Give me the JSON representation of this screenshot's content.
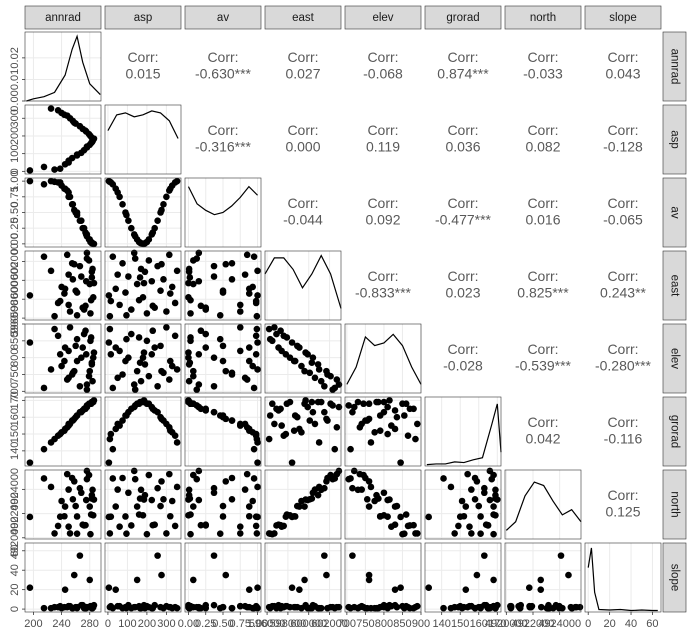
{
  "chart_data": {
    "type": "scatter_matrix",
    "corr_title": "Corr:",
    "point_color": "#000000",
    "grid": true,
    "variables": [
      {
        "name": "annrad",
        "lim": [
          188,
          296
        ],
        "ticks": [
          200,
          240,
          280
        ],
        "values": [
          230,
          215,
          245,
          250,
          255,
          262,
          268,
          272,
          276,
          280,
          282,
          284,
          285,
          283,
          281,
          279,
          275,
          270,
          266,
          260,
          256,
          252,
          248,
          240,
          235,
          225,
          195,
          250,
          262,
          276,
          286,
          274,
          258,
          244,
          283,
          238
        ],
        "density": {
          "x": [
            190,
            200,
            215,
            230,
            245,
            255,
            262,
            270,
            280,
            295
          ],
          "y": [
            0.0,
            0.001,
            0.002,
            0.004,
            0.012,
            0.024,
            0.03,
            0.018,
            0.008,
            0.003
          ],
          "ylim": [
            0,
            0.032
          ],
          "ticks": [
            {
              "value": 0,
              "label": "0.00"
            },
            {
              "value": 0.01,
              "label": "0.01"
            },
            {
              "value": 0.02,
              "label": "0.02"
            }
          ]
        }
      },
      {
        "name": "asp",
        "lim": [
          -15,
          375
        ],
        "ticks": [
          0,
          100,
          200,
          300
        ],
        "values": [
          10,
          25,
          40,
          60,
          75,
          90,
          105,
          120,
          135,
          150,
          160,
          170,
          180,
          190,
          200,
          210,
          225,
          240,
          255,
          270,
          285,
          300,
          315,
          330,
          345,
          355,
          5,
          50,
          95,
          140,
          185,
          230,
          275,
          320,
          165,
          15
        ],
        "density": {
          "x": [
            0,
            45,
            90,
            135,
            180,
            225,
            270,
            315,
            360
          ],
          "y": [
            0.0022,
            0.003,
            0.0031,
            0.0029,
            0.003,
            0.0032,
            0.0031,
            0.0027,
            0.0018
          ],
          "ylim": [
            0,
            0.0035
          ]
        }
      },
      {
        "name": "av",
        "lim": [
          -0.05,
          1.05
        ],
        "ticks": [
          {
            "value": 0,
            "label": "0.00"
          },
          {
            "value": 0.25,
            "label": "0.25"
          },
          {
            "value": 0.5,
            "label": "0.50"
          },
          {
            "value": 0.75,
            "label": "0.75"
          },
          {
            "value": 1,
            "label": "1.00"
          }
        ],
        "values": [
          0.99,
          0.95,
          0.88,
          0.75,
          0.63,
          0.5,
          0.37,
          0.25,
          0.15,
          0.07,
          0.03,
          0.01,
          0.0,
          0.01,
          0.03,
          0.07,
          0.15,
          0.25,
          0.37,
          0.5,
          0.63,
          0.75,
          0.85,
          0.93,
          0.98,
          1.0,
          1.0,
          0.82,
          0.46,
          0.12,
          0.0,
          0.18,
          0.54,
          0.88,
          0.02,
          0.98
        ],
        "density": {
          "x": [
            0,
            0.125,
            0.25,
            0.375,
            0.5,
            0.625,
            0.75,
            0.875,
            1
          ],
          "y": [
            1.4,
            1.0,
            0.85,
            0.75,
            0.8,
            0.95,
            1.15,
            1.4,
            1.2
          ],
          "ylim": [
            0,
            1.6
          ]
        }
      },
      {
        "name": "east",
        "lim": [
          595800,
          603100
        ],
        "ticks": [
          596000,
          598000,
          600000,
          602000
        ],
        "values": [
          596200,
          602500,
          599100,
          597400,
          601800,
          598700,
          600400,
          596900,
          602900,
          599600,
          597900,
          601200,
          598200,
          600900,
          596500,
          602100,
          599900,
          597100,
          601500,
          598900,
          600100,
          596700,
          602700,
          599300,
          597600,
          601000,
          598400,
          600600,
          596300,
          602300,
          599700,
          597300,
          601700,
          598600,
          600300,
          597800
        ],
        "density": {
          "x": [
            595800,
            596700,
            597600,
            598500,
            599400,
            600300,
            601200,
            602100,
            603100
          ],
          "y": [
            0.0002,
            0.00027,
            0.00027,
            0.00022,
            0.00014,
            0.0002,
            0.00028,
            0.0002,
            5e-05
          ],
          "ylim": [
            0,
            0.0003
          ]
        }
      },
      {
        "name": "elev",
        "lim": [
          695,
          900
        ],
        "ticks": [
          700,
          750,
          800,
          850,
          900
        ],
        "values": [
          885,
          710,
          830,
          820,
          750,
          790,
          800,
          870,
          720,
          760,
          860,
          730,
          800,
          780,
          850,
          745,
          810,
          830,
          715,
          835,
          755,
          890,
          735,
          775,
          865,
          765,
          845,
          740,
          855,
          705,
          815,
          880,
          760,
          790,
          785,
          810
        ],
        "density": {
          "x": [
            700,
            725,
            750,
            775,
            800,
            825,
            850,
            875,
            900
          ],
          "y": [
            0.001,
            0.003,
            0.0065,
            0.0055,
            0.0058,
            0.0068,
            0.0055,
            0.003,
            0.001
          ],
          "ylim": [
            0,
            0.008
          ]
        }
      },
      {
        "name": "grorad",
        "lim": [
          131,
          172
        ],
        "ticks": [
          140,
          150,
          160,
          170
        ],
        "values": [
          147,
          141,
          153,
          155,
          158,
          161,
          163,
          165,
          166,
          168,
          168,
          169,
          169,
          169,
          168,
          168,
          166,
          164,
          163,
          160,
          158,
          156,
          154,
          151,
          149,
          145,
          133,
          156,
          161,
          167,
          170,
          165,
          159,
          152,
          169,
          150
        ],
        "density": {
          "x": [
            132,
            137,
            142,
            147,
            152,
            157,
            162,
            167,
            170,
            172
          ],
          "y": [
            0.002,
            0.003,
            0.003,
            0.006,
            0.005,
            0.009,
            0.012,
            0.06,
            0.09,
            0.02
          ],
          "ylim": [
            0,
            0.1
          ]
        }
      },
      {
        "name": "north",
        "lim": [
          4919900,
          4925600
        ],
        "ticks": [
          4920000,
          4922000,
          4924000
        ],
        "values": [
          4920360,
          4924900,
          4922580,
          4920920,
          4924940,
          4921760,
          4923720,
          4921020,
          4925520,
          4922580,
          4921920,
          4923960,
          4921860,
          4923520,
          4920300,
          4925180,
          4923120,
          4921080,
          4924100,
          4922620,
          4923180,
          4920360,
          4925260,
          4923040,
          4920980,
          4924200,
          4921720,
          4923980,
          4920340,
          4924840,
          4923160,
          4921040,
          4924660,
          4921780,
          4923240,
          4921740
        ],
        "density": {
          "x": [
            4920000,
            4920700,
            4921400,
            4922100,
            4922800,
            4923500,
            4924200,
            4924900,
            4925600
          ],
          "y": [
            5e-05,
            0.0001,
            0.00025,
            0.00033,
            0.00031,
            0.00022,
            0.00014,
            0.00017,
            0.0001
          ],
          "ylim": [
            0,
            0.0004
          ]
        }
      },
      {
        "name": "slope",
        "lim": [
          -3,
          68
        ],
        "ticks": [
          0,
          20,
          40,
          60
        ],
        "values": [
          2,
          1,
          20,
          3,
          1,
          2,
          4,
          1,
          2,
          30,
          3,
          1,
          2,
          1,
          3,
          2,
          1,
          4,
          55,
          2,
          1,
          3,
          2,
          1,
          2,
          1,
          22,
          3,
          1,
          2,
          4,
          1,
          35,
          2,
          1,
          3
        ],
        "density": {
          "x": [
            0,
            3,
            6,
            10,
            20,
            30,
            40,
            50,
            60,
            65
          ],
          "y": [
            0.09,
            0.13,
            0.04,
            0.005,
            0.004,
            0.005,
            0.003,
            0.004,
            0.003,
            0.003
          ],
          "ylim": [
            0,
            0.14
          ]
        }
      }
    ],
    "correlations": [
      [
        "0.015",
        "-0.630***",
        "0.027",
        "-0.068",
        "0.874***",
        "-0.033",
        "0.043"
      ],
      [
        "-0.316***",
        "0.000",
        "0.119",
        "0.036",
        "0.082",
        "-0.128"
      ],
      [
        "-0.044",
        "0.092",
        "-0.477***",
        "0.016",
        "-0.065"
      ],
      [
        "-0.833***",
        "0.023",
        "0.825***",
        "0.243**"
      ],
      [
        "-0.028",
        "-0.539***",
        "-0.280***"
      ],
      [
        "0.042",
        "-0.116"
      ],
      [
        "0.125"
      ]
    ]
  }
}
